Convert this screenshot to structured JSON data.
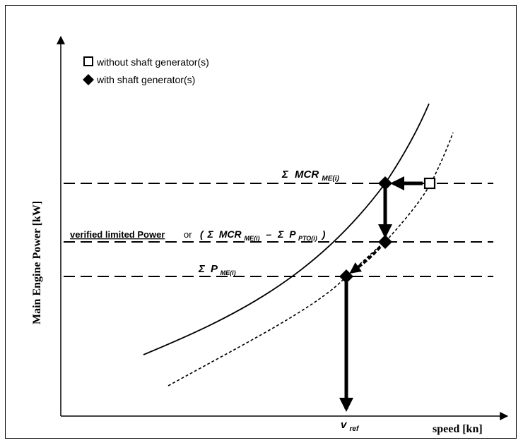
{
  "legend": {
    "without_label": "without shaft generator(s)",
    "with_label": "with shaft generator(s)"
  },
  "axes": {
    "y_label": "Main Engine Power  [kW]",
    "x_label": "speed [kn]"
  },
  "labels": {
    "mcr_sigma": "Σ",
    "mcr_main": "MCR",
    "mcr_sub": "ME(i)",
    "verified_text": "verified limited Power",
    "verified_or": "or",
    "paren_open": "(",
    "paren_sigma1": "Σ",
    "paren_mcr": "MCR",
    "paren_mcr_sub": "ME(i)",
    "paren_minus": "–",
    "paren_sigma2": "Σ",
    "paren_p": "P",
    "paren_p_sub": "PTO(i)",
    "paren_close": ")",
    "pme_sigma": "Σ",
    "pme_p": "P",
    "pme_sub": "ME(i)",
    "vref_v": "v",
    "vref_sub": "ref"
  }
}
